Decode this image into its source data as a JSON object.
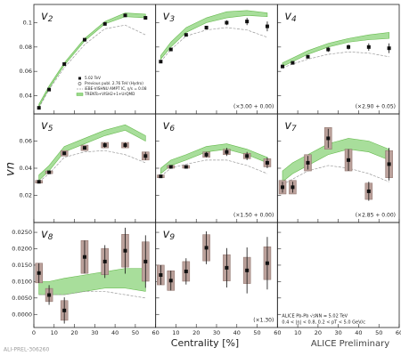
{
  "chart_data": {
    "type": "multi-panel",
    "x_label": "Centrality [%]",
    "y_label": "vn",
    "watermark": "ALICE Preliminary",
    "figure_id": "ALI-PREL-306260",
    "xlim": [
      0,
      60
    ],
    "xticks": [
      0,
      10,
      20,
      30,
      40,
      50,
      60
    ],
    "x": [
      2.5,
      7.5,
      15,
      25,
      35,
      45,
      55
    ],
    "colors": {
      "points": "#111111",
      "band": "#9ad98a",
      "band_edge": "#4caf30",
      "model": "#9a9a9a",
      "sys": "#bba19b"
    },
    "legend": [
      {
        "name": "5.02 TeV",
        "style": "points"
      },
      {
        "name": "Previous publ. 2.76 TeV (Hydro)",
        "style": "open"
      },
      {
        "name": "iEBE-VISHNU AMPT IC, η/s = 0.08",
        "style": "model"
      },
      {
        "name": "TRENTo+VISH2+1+UrQMD",
        "style": "band"
      }
    ],
    "info": [
      "ALICE Pb-Pb √sNN = 5.02 TeV",
      "0.4 < |η| < 0.8, 0.2 < pT < 5.0 GeV/c"
    ],
    "rows": [
      {
        "ylim": [
          0.025,
          0.115
        ],
        "yticks": [
          0.04,
          0.06,
          0.08,
          0.1
        ],
        "panels": [
          {
            "label": "v2",
            "values": [
              0.03,
              0.045,
              0.066,
              0.086,
              0.099,
              0.106,
              0.104
            ],
            "errors": [
              0.001,
              0.001,
              0.001,
              0.001,
              0.001,
              0.001,
              0.001
            ],
            "band_low": [
              0.031,
              0.046,
              0.065,
              0.085,
              0.099,
              0.105,
              0.104
            ],
            "band_high": [
              0.033,
              0.048,
              0.067,
              0.087,
              0.101,
              0.108,
              0.107
            ],
            "model": [
              0.03,
              0.045,
              0.063,
              0.082,
              0.095,
              0.098,
              0.09
            ]
          },
          {
            "label": "v3",
            "scale": "(×3.00 + 0.00)",
            "values": [
              0.068,
              0.078,
              0.09,
              0.096,
              0.1,
              0.101,
              0.097
            ],
            "errors": [
              0.001,
              0.001,
              0.001,
              0.001,
              0.002,
              0.003,
              0.004
            ],
            "band_low": [
              0.07,
              0.08,
              0.092,
              0.1,
              0.104,
              0.106,
              0.105
            ],
            "band_high": [
              0.073,
              0.084,
              0.096,
              0.104,
              0.109,
              0.11,
              0.108
            ],
            "model": [
              0.068,
              0.078,
              0.089,
              0.094,
              0.096,
              0.094,
              0.088
            ]
          },
          {
            "label": "v4",
            "scale": "(×2.90 + 0.05)",
            "values": [
              0.064,
              0.067,
              0.072,
              0.078,
              0.08,
              0.08,
              0.079
            ],
            "errors": [
              0.001,
              0.001,
              0.001,
              0.002,
              0.002,
              0.003,
              0.004
            ],
            "band_low": [
              0.064,
              0.068,
              0.074,
              0.08,
              0.084,
              0.086,
              0.087
            ],
            "band_high": [
              0.067,
              0.071,
              0.077,
              0.083,
              0.087,
              0.09,
              0.092
            ],
            "model": [
              0.063,
              0.066,
              0.07,
              0.074,
              0.076,
              0.075,
              0.072
            ]
          }
        ]
      },
      {
        "ylim": [
          0.0,
          0.08
        ],
        "yticks": [
          0.02,
          0.04,
          0.06
        ],
        "panels": [
          {
            "label": "v5",
            "values": [
              0.03,
              0.037,
              0.051,
              0.055,
              0.057,
              0.057,
              0.049
            ],
            "errors": [
              0.001,
              0.001,
              0.001,
              0.001,
              0.002,
              0.002,
              0.003
            ],
            "sys": [
              0.001,
              0.001,
              0.002,
              0.002,
              0.002,
              0.002,
              0.003
            ],
            "band_low": [
              0.031,
              0.038,
              0.052,
              0.058,
              0.064,
              0.068,
              0.06
            ],
            "band_high": [
              0.035,
              0.042,
              0.056,
              0.062,
              0.068,
              0.072,
              0.064
            ],
            "model": [
              0.03,
              0.036,
              0.048,
              0.052,
              0.053,
              0.05,
              0.044
            ]
          },
          {
            "label": "v6",
            "scale": "(×1.50 + 0.00)",
            "values": [
              0.034,
              0.041,
              0.041,
              0.05,
              0.052,
              0.049,
              0.044
            ],
            "errors": [
              0.001,
              0.001,
              0.001,
              0.002,
              0.003,
              0.003,
              0.004
            ],
            "sys": [
              0.001,
              0.001,
              0.001,
              0.002,
              0.002,
              0.002,
              0.003
            ],
            "band_low": [
              0.036,
              0.042,
              0.046,
              0.052,
              0.054,
              0.05,
              0.044
            ],
            "band_high": [
              0.04,
              0.046,
              0.05,
              0.056,
              0.058,
              0.054,
              0.048
            ],
            "model": [
              0.034,
              0.04,
              0.043,
              0.046,
              0.046,
              0.042,
              0.036
            ]
          },
          {
            "label": "v7",
            "scale": "(×2.85 + 0.00)",
            "values": [
              0.026,
              0.026,
              0.044,
              0.062,
              0.046,
              0.023,
              0.043
            ],
            "errors": [
              0.004,
              0.004,
              0.005,
              0.007,
              0.008,
              0.007,
              0.012
            ],
            "sys": [
              0.005,
              0.005,
              0.006,
              0.008,
              0.008,
              0.006,
              0.01
            ],
            "band_low": [
              0.03,
              0.036,
              0.042,
              0.05,
              0.054,
              0.052,
              0.046
            ],
            "band_high": [
              0.038,
              0.044,
              0.05,
              0.058,
              0.062,
              0.06,
              0.054
            ],
            "model": [
              0.028,
              0.032,
              0.038,
              0.042,
              0.04,
              0.036,
              0.03
            ]
          }
        ]
      },
      {
        "ylim": [
          -0.004,
          0.028
        ],
        "yticks": [
          {
            "value": 0.0,
            "label": "0.0000"
          },
          {
            "value": 0.005,
            "label": "0.0050"
          },
          {
            "value": 0.01,
            "label": "0.0100"
          },
          {
            "value": 0.015,
            "label": "0.0150"
          },
          {
            "value": 0.02,
            "label": "0.0200"
          },
          {
            "value": 0.025,
            "label": "0.0250"
          }
        ],
        "panels": [
          {
            "label": "v8",
            "values": [
              0.0126,
              0.0059,
              0.0012,
              0.0175,
              0.0161,
              0.0194,
              0.0161
            ],
            "errors": [
              0.003,
              0.003,
              0.004,
              0.005,
              0.005,
              0.007,
              0.008
            ],
            "sys": [
              0.003,
              0.002,
              0.003,
              0.005,
              0.004,
              0.005,
              0.006
            ],
            "band_low": [
              0.006,
              0.006,
              0.006,
              0.007,
              0.008,
              0.008,
              0.007
            ],
            "band_high": [
              0.01,
              0.01,
              0.011,
              0.012,
              0.013,
              0.014,
              0.014
            ],
            "model": [
              0.006,
              0.006,
              0.006,
              0.007,
              0.007,
              0.006,
              0.005
            ]
          },
          {
            "label": "v9",
            "scale": "(×1.30)",
            "values": [
              0.012,
              0.0103,
              0.0131,
              0.0203,
              0.0142,
              0.0134,
              0.0156
            ],
            "errors": [
              0.003,
              0.003,
              0.004,
              0.005,
              0.006,
              0.007,
              0.008
            ],
            "sys": [
              0.003,
              0.003,
              0.003,
              0.004,
              0.004,
              0.004,
              0.005
            ]
          }
        ]
      }
    ]
  }
}
